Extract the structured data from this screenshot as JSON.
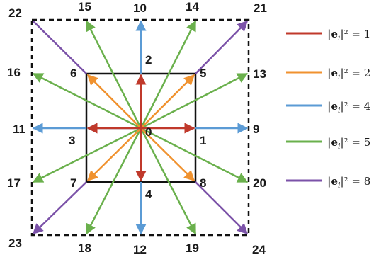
{
  "colors": {
    "magnitude_1": "#c0392b",
    "magnitude_2": "#f0922f",
    "magnitude_4": "#5b9bd5",
    "magnitude_5": "#6ab04c",
    "magnitude_8": "#7b52a8",
    "frame": "#111111"
  },
  "nodes": {
    "n0": "0",
    "n1": "1",
    "n2": "2",
    "n3": "3",
    "n4": "4",
    "n5": "5",
    "n6": "6",
    "n7": "7",
    "n8": "8",
    "n9": "9",
    "n10": "10",
    "n11": "11",
    "n12": "12",
    "n13": "13",
    "n14": "14",
    "n15": "15",
    "n16": "16",
    "n17": "17",
    "n18": "18",
    "n19": "19",
    "n20": "20",
    "n21": "21",
    "n22": "22",
    "n23": "23",
    "n24": "24"
  },
  "legend": [
    {
      "label": "|e",
      "sub": "i",
      "tail": "|² = 1",
      "color_key": "magnitude_1"
    },
    {
      "label": "|e",
      "sub": "i",
      "tail": "|² = 2",
      "color_key": "magnitude_2"
    },
    {
      "label": "|e",
      "sub": "i",
      "tail": "|² = 4",
      "color_key": "magnitude_4"
    },
    {
      "label": "|e",
      "sub": "i",
      "tail": "|² = 5",
      "color_key": "magnitude_5"
    },
    {
      "label": "|e",
      "sub": "i",
      "tail": "|² = 8",
      "color_key": "magnitude_8"
    }
  ]
}
